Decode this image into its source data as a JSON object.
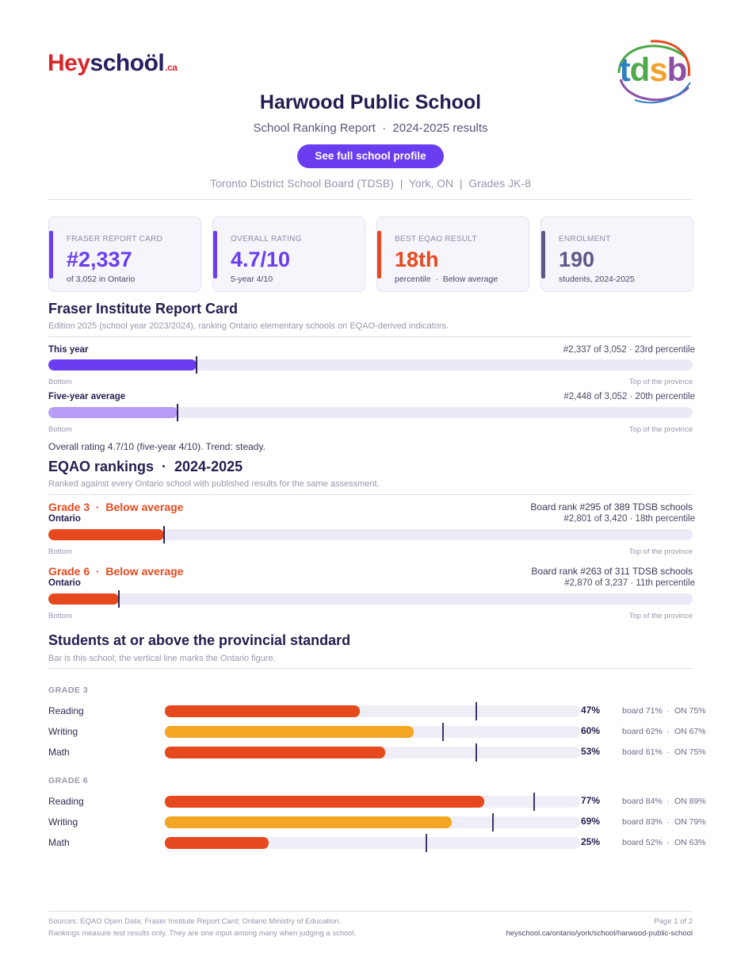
{
  "logos": {
    "heyschool_hey": "He",
    "heyschool_y": "y",
    "heyschool_school": "schoöl",
    "heyschool_ca": ".ca",
    "tdsb": {
      "t": "t",
      "d": "d",
      "s": "s",
      "b": "b"
    }
  },
  "header": {
    "title": "Harwood Public School",
    "subtitle": "School Ranking Report  ·  2024-2025 results",
    "profile_button": "See full school profile",
    "meta": "Toronto District School Board (TDSB)  |  York, ON  |  Grades JK-8"
  },
  "cards": [
    {
      "label": "FRASER REPORT CARD",
      "value": "#2,337",
      "sub": "of 3,052 in Ontario",
      "color": "#6a3ef0"
    },
    {
      "label": "OVERALL RATING",
      "value": "4.7/10",
      "sub": "5-year 4/10",
      "color": "#6a3ef0"
    },
    {
      "label": "BEST EQAO RESULT",
      "value": "18th",
      "sub": "percentile  ·  Below average",
      "color": "#e6491d"
    },
    {
      "label": "ENROLMENT",
      "value": "190",
      "sub": "students, 2024-2025",
      "color": "#5e5886"
    }
  ],
  "fraser": {
    "heading": "Fraser Institute Report Card",
    "note": "Edition 2025 (school year 2023/2024), ranking Ontario elementary schools on EQAO-derived indicators.",
    "rows": [
      {
        "label": "This year",
        "right": "#2,337 of 3,052  ·  23rd percentile",
        "fill_pct": 23,
        "color": "#6a3ef0"
      },
      {
        "label": "Five-year average",
        "right": "#2,448 of 3,052  ·  20th percentile",
        "fill_pct": 20,
        "color": "#b89cf5"
      }
    ],
    "axis_left": "Bottom",
    "axis_right": "Top of the province",
    "summary": "Overall rating 4.7/10 (five-year 4/10). Trend: steady."
  },
  "eqao": {
    "heading": "EQAO rankings  ·  2024-2025",
    "note": "Ranked against every Ontario school with published results for the same assessment.",
    "grades": [
      {
        "head": "Grade 3  ·  Below average",
        "sublabel": "Ontario",
        "board_rank": "Board rank #295 of 389 TDSB schools",
        "right": "#2,801 of 3,420  ·  18th percentile",
        "fill_pct": 18,
        "color": "#e6491d"
      },
      {
        "head": "Grade 6  ·  Below average",
        "sublabel": "Ontario",
        "board_rank": "Board rank #263 of 311 TDSB schools",
        "right": "#2,870 of 3,237  ·  11th percentile",
        "fill_pct": 11,
        "color": "#e6491d"
      }
    ],
    "axis_left": "Bottom",
    "axis_right": "Top of the province"
  },
  "standard": {
    "heading": "Students at or above the provincial standard",
    "note": "Bar is this school; the vertical line marks the Ontario figure.",
    "groups": [
      {
        "label": "GRADE 3",
        "rows": [
          {
            "subject": "Reading",
            "school_pct": 47,
            "pct_label": "47%",
            "ontario_pct": 75,
            "compare": "board 71%  ·  ON 75%",
            "color": "#e6491d"
          },
          {
            "subject": "Writing",
            "school_pct": 60,
            "pct_label": "60%",
            "ontario_pct": 67,
            "compare": "board 62%  ·  ON 67%",
            "color": "#f2a623"
          },
          {
            "subject": "Math",
            "school_pct": 53,
            "pct_label": "53%",
            "ontario_pct": 75,
            "compare": "board 61%  ·  ON 75%",
            "color": "#e6491d"
          }
        ]
      },
      {
        "label": "GRADE 6",
        "rows": [
          {
            "subject": "Reading",
            "school_pct": 77,
            "pct_label": "77%",
            "ontario_pct": 89,
            "compare": "board 84%  ·  ON 89%",
            "color": "#e6491d"
          },
          {
            "subject": "Writing",
            "school_pct": 69,
            "pct_label": "69%",
            "ontario_pct": 79,
            "compare": "board 83%  ·  ON 79%",
            "color": "#f2a623"
          },
          {
            "subject": "Math",
            "school_pct": 25,
            "pct_label": "25%",
            "ontario_pct": 63,
            "compare": "board 52%  ·  ON 63%",
            "color": "#e6491d"
          }
        ]
      }
    ]
  },
  "footer": {
    "sources": "Sources: EQAO Open Data; Fraser Institute Report Card; Ontario Ministry of Education.",
    "disclaimer": "Rankings measure test results only. They are one input among many when judging a school.",
    "page": "Page 1 of 2",
    "url": "heyschool.ca/ontario/york/school/harwood-public-school"
  }
}
